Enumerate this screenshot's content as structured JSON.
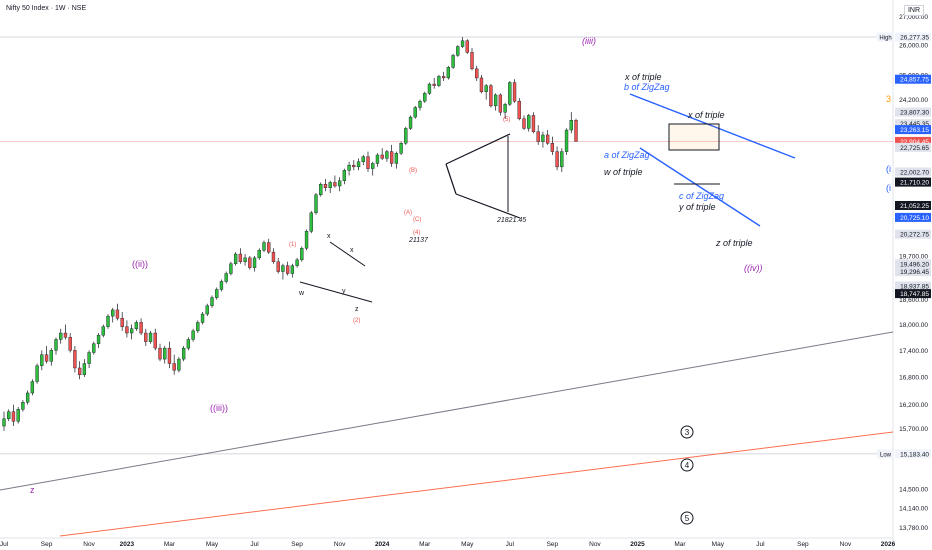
{
  "header": {
    "title": "Nifty 50 Index · 1W · NSE",
    "currency": "INR"
  },
  "chart_data": {
    "type": "candlestick",
    "title": "Nifty 50 Index · 1W · NSE",
    "ylim": [
      13700,
      27300
    ],
    "x_ticks": [
      {
        "t": 0,
        "label": "Jul"
      },
      {
        "t": 9,
        "label": "Sep"
      },
      {
        "t": 18,
        "label": "Nov"
      },
      {
        "t": 26,
        "label": "2023"
      },
      {
        "t": 35,
        "label": "Mar"
      },
      {
        "t": 44,
        "label": "May"
      },
      {
        "t": 53,
        "label": "Jul"
      },
      {
        "t": 62,
        "label": "Sep"
      },
      {
        "t": 71,
        "label": "Nov"
      },
      {
        "t": 80,
        "label": "2024"
      },
      {
        "t": 89,
        "label": "Mar"
      },
      {
        "t": 98,
        "label": "May"
      },
      {
        "t": 107,
        "label": "Jul"
      },
      {
        "t": 116,
        "label": "Sep"
      },
      {
        "t": 125,
        "label": "Nov"
      },
      {
        "t": 134,
        "label": "2025"
      },
      {
        "t": 143,
        "label": "Mar"
      },
      {
        "t": 151,
        "label": "May"
      },
      {
        "t": 160,
        "label": "Jul"
      },
      {
        "t": 169,
        "label": "Sep"
      },
      {
        "t": 178,
        "label": "Nov"
      },
      {
        "t": 187,
        "label": "2026"
      }
    ],
    "y_ticks": [
      {
        "v": 27000,
        "label": "27,000.00"
      },
      {
        "v": 26000,
        "label": "26,000.00"
      },
      {
        "v": 25000,
        "label": "25,000.00"
      },
      {
        "v": 24200,
        "label": "24,200.00"
      },
      {
        "v": 19700,
        "label": "19,700.00"
      },
      {
        "v": 18600,
        "label": "18,600.00"
      },
      {
        "v": 18000,
        "label": "18,000.00"
      },
      {
        "v": 17400,
        "label": "17,400.00"
      },
      {
        "v": 16800,
        "label": "16,800.00"
      },
      {
        "v": 16200,
        "label": "16,200.00"
      },
      {
        "v": 15700,
        "label": "15,700.00"
      },
      {
        "v": 15200,
        "label": "15,200.00"
      },
      {
        "v": 14500,
        "label": "14,500.00"
      },
      {
        "v": 14140,
        "label": "14,140.00"
      },
      {
        "v": 13780,
        "label": "13,780.00"
      }
    ],
    "price_tags": [
      {
        "v": 26277.35,
        "label": "26,277.35",
        "prefix": "High",
        "kind": "hl"
      },
      {
        "v": 24857.75,
        "label": "24,857.75",
        "kind": "blue"
      },
      {
        "v": 23807.3,
        "label": "23,807.30",
        "kind": "gray"
      },
      {
        "v": 23445.35,
        "label": "23,445.35",
        "kind": "gray"
      },
      {
        "v": 23263.15,
        "label": "23,263.15",
        "kind": "blue"
      },
      {
        "v": 22904.45,
        "label": "22,904.45",
        "kind": "red"
      },
      {
        "v": 22725.65,
        "label": "22,725.65",
        "kind": "gray"
      },
      {
        "v": 22002.7,
        "label": "22,002.70",
        "kind": "gray"
      },
      {
        "v": 21710.2,
        "label": "21,710.20",
        "kind": "dark"
      },
      {
        "v": 21052.25,
        "label": "21,052.25",
        "kind": "dark"
      },
      {
        "v": 20725.1,
        "label": "20,725.10",
        "kind": "blue"
      },
      {
        "v": 20272.75,
        "label": "20,272.75",
        "kind": "gray"
      },
      {
        "v": 19496.2,
        "label": "19,496.20",
        "kind": "gray"
      },
      {
        "v": 19296.45,
        "label": "19,296.45",
        "kind": "gray"
      },
      {
        "v": 18937.85,
        "label": "18,937.85",
        "kind": "gray"
      },
      {
        "v": 18747.85,
        "label": "18,747.85",
        "kind": "dark"
      },
      {
        "v": 15183.4,
        "label": "15,183.40",
        "prefix": "Low",
        "kind": "hl"
      }
    ],
    "h_lines": [
      26277.35,
      22904.45,
      15183.4
    ],
    "candles": [
      [
        15750,
        16050,
        15650,
        15900
      ],
      [
        15900,
        16100,
        15850,
        16050
      ],
      [
        16050,
        16200,
        15750,
        15850
      ],
      [
        15850,
        16150,
        15800,
        16100
      ],
      [
        16100,
        16300,
        16050,
        16250
      ],
      [
        16250,
        16500,
        16200,
        16450
      ],
      [
        16450,
        16750,
        16400,
        16700
      ],
      [
        16700,
        17100,
        16650,
        17050
      ],
      [
        17050,
        17400,
        16950,
        17300
      ],
      [
        17300,
        17500,
        17100,
        17150
      ],
      [
        17150,
        17450,
        17050,
        17400
      ],
      [
        17400,
        17700,
        17300,
        17650
      ],
      [
        17650,
        17900,
        17550,
        17800
      ],
      [
        17800,
        18000,
        17650,
        17700
      ],
      [
        17700,
        17800,
        17350,
        17400
      ],
      [
        17400,
        17500,
        16900,
        17000
      ],
      [
        17000,
        17150,
        16750,
        16850
      ],
      [
        16850,
        17200,
        16800,
        17100
      ],
      [
        17100,
        17400,
        17000,
        17350
      ],
      [
        17350,
        17600,
        17300,
        17550
      ],
      [
        17550,
        17800,
        17450,
        17750
      ],
      [
        17750,
        18000,
        17700,
        17950
      ],
      [
        17950,
        18250,
        17900,
        18200
      ],
      [
        18200,
        18400,
        18050,
        18350
      ],
      [
        18350,
        18500,
        18100,
        18150
      ],
      [
        18150,
        18300,
        17850,
        17950
      ],
      [
        17950,
        18100,
        17700,
        17800
      ],
      [
        17800,
        18000,
        17650,
        17900
      ],
      [
        17900,
        18100,
        17850,
        18050
      ],
      [
        18050,
        18150,
        17750,
        17800
      ],
      [
        17800,
        17900,
        17500,
        17600
      ],
      [
        17600,
        17850,
        17550,
        17800
      ],
      [
        17800,
        17900,
        17400,
        17450
      ],
      [
        17450,
        17550,
        17150,
        17200
      ],
      [
        17200,
        17500,
        17100,
        17450
      ],
      [
        17450,
        17600,
        17000,
        17100
      ],
      [
        17100,
        17300,
        16850,
        16950
      ],
      [
        16950,
        17250,
        16900,
        17200
      ],
      [
        17200,
        17500,
        17150,
        17450
      ],
      [
        17450,
        17700,
        17400,
        17650
      ],
      [
        17650,
        17900,
        17600,
        17850
      ],
      [
        17850,
        18100,
        17800,
        18050
      ],
      [
        18050,
        18300,
        18000,
        18250
      ],
      [
        18250,
        18500,
        18200,
        18450
      ],
      [
        18450,
        18700,
        18400,
        18650
      ],
      [
        18650,
        18900,
        18600,
        18850
      ],
      [
        18850,
        19100,
        18800,
        19050
      ],
      [
        19050,
        19300,
        19000,
        19250
      ],
      [
        19250,
        19550,
        19200,
        19500
      ],
      [
        19500,
        19800,
        19450,
        19750
      ],
      [
        19750,
        19900,
        19500,
        19550
      ],
      [
        19550,
        19750,
        19450,
        19650
      ],
      [
        19650,
        19700,
        19350,
        19400
      ],
      [
        19400,
        19700,
        19300,
        19650
      ],
      [
        19650,
        19900,
        19600,
        19850
      ],
      [
        19850,
        20100,
        19800,
        20050
      ],
      [
        20050,
        20150,
        19750,
        19800
      ],
      [
        19800,
        19900,
        19500,
        19550
      ],
      [
        19550,
        19650,
        19250,
        19300
      ],
      [
        19300,
        19500,
        19100,
        19450
      ],
      [
        19450,
        19550,
        19200,
        19250
      ],
      [
        19250,
        19500,
        19150,
        19450
      ],
      [
        19450,
        19650,
        19400,
        19600
      ],
      [
        19600,
        19950,
        19550,
        19900
      ],
      [
        19900,
        20400,
        19850,
        20350
      ],
      [
        20350,
        20900,
        20300,
        20850
      ],
      [
        20850,
        21400,
        20800,
        21350
      ],
      [
        21350,
        21700,
        21300,
        21650
      ],
      [
        21650,
        21800,
        21450,
        21550
      ],
      [
        21550,
        21750,
        21400,
        21700
      ],
      [
        21700,
        21900,
        21550,
        21600
      ],
      [
        21600,
        21850,
        21450,
        21750
      ],
      [
        21750,
        22100,
        21650,
        22050
      ],
      [
        22050,
        22300,
        21900,
        22200
      ],
      [
        22200,
        22350,
        22050,
        22150
      ],
      [
        22150,
        22400,
        22050,
        22300
      ],
      [
        22300,
        22500,
        22200,
        22450
      ],
      [
        22450,
        22600,
        22000,
        22100
      ],
      [
        22100,
        22300,
        21900,
        22250
      ],
      [
        22250,
        22550,
        22150,
        22500
      ],
      [
        22500,
        22700,
        22350,
        22400
      ],
      [
        22400,
        22650,
        22300,
        22600
      ],
      [
        22600,
        22800,
        22150,
        22250
      ],
      [
        22250,
        22600,
        22100,
        22550
      ],
      [
        22550,
        22900,
        22500,
        22850
      ],
      [
        22850,
        23350,
        22800,
        23300
      ],
      [
        23300,
        23700,
        23250,
        23650
      ],
      [
        23650,
        24000,
        23600,
        23950
      ],
      [
        23950,
        24200,
        23850,
        24150
      ],
      [
        24150,
        24450,
        24100,
        24400
      ],
      [
        24400,
        24750,
        24350,
        24700
      ],
      [
        24700,
        24900,
        24550,
        24650
      ],
      [
        24650,
        25000,
        24600,
        24950
      ],
      [
        24950,
        25100,
        24800,
        24900
      ],
      [
        24900,
        25300,
        24850,
        25250
      ],
      [
        25250,
        25700,
        25200,
        25650
      ],
      [
        25650,
        26000,
        25600,
        25950
      ],
      [
        25950,
        26277,
        25900,
        26150
      ],
      [
        26150,
        26200,
        25700,
        25750
      ],
      [
        25750,
        25900,
        25150,
        25200
      ],
      [
        25200,
        25300,
        24800,
        24900
      ],
      [
        24900,
        25000,
        24400,
        24450
      ],
      [
        24450,
        24700,
        24200,
        24650
      ],
      [
        24650,
        24700,
        23950,
        24000
      ],
      [
        24000,
        24400,
        23850,
        24350
      ],
      [
        24350,
        24400,
        23700,
        23800
      ],
      [
        23800,
        24100,
        23600,
        24050
      ],
      [
        24050,
        24800,
        24000,
        24750
      ],
      [
        24750,
        24857,
        24100,
        24150
      ],
      [
        24150,
        24250,
        23550,
        23600
      ],
      [
        23600,
        23700,
        23250,
        23300
      ],
      [
        23300,
        23750,
        23200,
        23700
      ],
      [
        23700,
        23800,
        23150,
        23200
      ],
      [
        23200,
        23400,
        22800,
        22900
      ],
      [
        22900,
        23200,
        22720,
        23100
      ],
      [
        23100,
        23250,
        22800,
        22850
      ],
      [
        22850,
        23050,
        22500,
        22600
      ],
      [
        22600,
        22750,
        22050,
        22150
      ],
      [
        22150,
        22700,
        22000,
        22600
      ],
      [
        22600,
        23300,
        22500,
        23250
      ],
      [
        23250,
        23807,
        23150,
        23550
      ],
      [
        23550,
        23600,
        22900,
        22904
      ]
    ]
  },
  "labels": {
    "wave_iiii_top": "(iiii)",
    "x_of_triple_top": "x of triple",
    "b_of_zigzag": "b of ZigZag",
    "x_of_triple_right": "x of triple",
    "a_of_zigzag": "a of ZigZag",
    "w_of_triple": "w of triple",
    "c_of_zigzag": "c of ZigZag",
    "y_of_triple": "y of triple",
    "z_of_triple": "z of triple",
    "wave_iv_paren": "((iv))",
    "orange_3": "3",
    "value_21821": "21821.45",
    "value_21137": "21137",
    "wave_5_red": "(5)",
    "wave_B_red": "(B)",
    "wave_A_red": "(A)",
    "wave_C_red": "(C)",
    "wave_4_red": "(4)",
    "wave_1_red": "(1)",
    "wave_2_red": "(2)",
    "w_label": "w",
    "x_label": "x",
    "y_label": "y",
    "z_label": "z",
    "x_label_2": "x",
    "wave_ii_purple": "((ii))",
    "wave_iii_purple": "((iii))",
    "wave_z_bottom": "z",
    "circle_3": "3",
    "circle_4": "4",
    "circle_5": "5",
    "edge_i1": "(i",
    "edge_i2": "(i"
  },
  "colors": {
    "up": "#26a69a",
    "up_bright": "#2ebd3c",
    "down": "#ef5350",
    "channel_blue": "#2962ff",
    "trend_gray": "#787b86",
    "trend_orange": "#f7704e",
    "purple": "#9c27b0",
    "green_label": "#4caf50",
    "orange_label": "#ff9800"
  }
}
